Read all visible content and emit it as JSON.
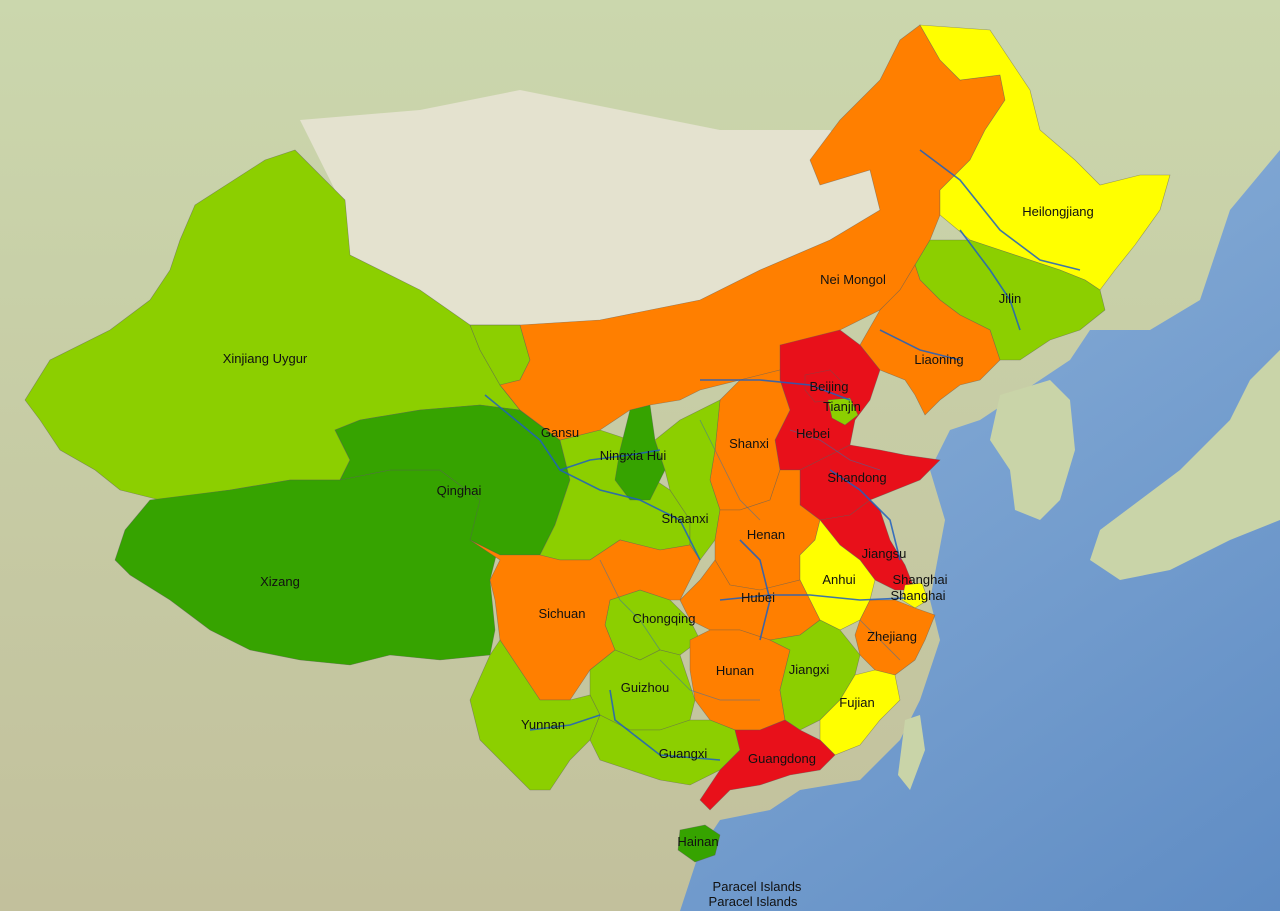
{
  "colors": {
    "ocean": "#8fb6dc",
    "ocean_deep": "#6d97c9",
    "land_north": "#cfd9b0",
    "land_mongolia": "#e6e4d2",
    "land_south": "#c9c6a4",
    "red": "#e8101a",
    "orange": "#ff7f00",
    "yellow": "#ffff00",
    "light_green": "#8ccf00",
    "dark_green": "#36a300",
    "rail": "#1f5fbf"
  },
  "provinces": {
    "xinjiang": {
      "label": "Xinjiang Uygur",
      "category": "light_green"
    },
    "xizang": {
      "label": "Xizang",
      "category": "dark_green"
    },
    "qinghai": {
      "label": "Qinghai",
      "category": "dark_green"
    },
    "gansu": {
      "label": "Gansu",
      "category": "light_green"
    },
    "neimongol": {
      "label": "Nei Mongol",
      "category": "orange"
    },
    "heilongjiang": {
      "label": "Heilongjiang",
      "category": "yellow"
    },
    "jilin": {
      "label": "Jilin",
      "category": "light_green"
    },
    "liaoning": {
      "label": "Liaoning",
      "category": "orange"
    },
    "beijing": {
      "label": "Beijing",
      "category": "red"
    },
    "tianjin": {
      "label": "Tianjin",
      "category": "light_green"
    },
    "hebei": {
      "label": "Hebei",
      "category": "red"
    },
    "shanxi": {
      "label": "Shanxi",
      "category": "orange"
    },
    "ningxia": {
      "label": "Ningxia Hui",
      "category": "dark_green"
    },
    "shaanxi": {
      "label": "Shaanxi",
      "category": "light_green"
    },
    "shandong": {
      "label": "Shandong",
      "category": "red"
    },
    "henan": {
      "label": "Henan",
      "category": "orange"
    },
    "jiangsu": {
      "label": "Jiangsu",
      "category": "red"
    },
    "anhui": {
      "label": "Anhui",
      "category": "yellow"
    },
    "shanghai": {
      "label": "Shanghai",
      "label2": "Shanghai",
      "category": "yellow"
    },
    "hubei": {
      "label": "Hubei",
      "category": "orange"
    },
    "sichuan": {
      "label": "Sichuan",
      "category": "orange"
    },
    "chongqing": {
      "label": "Chongqing",
      "category": "light_green"
    },
    "zhejiang": {
      "label": "Zhejiang",
      "category": "orange"
    },
    "hunan": {
      "label": "Hunan",
      "category": "orange"
    },
    "jiangxi": {
      "label": "Jiangxi",
      "category": "light_green"
    },
    "guizhou": {
      "label": "Guizhou",
      "category": "light_green"
    },
    "fujian": {
      "label": "Fujian",
      "category": "yellow"
    },
    "yunnan": {
      "label": "Yunnan",
      "category": "light_green"
    },
    "guangxi": {
      "label": "Guangxi",
      "category": "light_green"
    },
    "guangdong": {
      "label": "Guangdong",
      "category": "red"
    },
    "hainan": {
      "label": "Hainan",
      "category": "dark_green"
    }
  },
  "islands": {
    "paracel_label_1": "Paracel Islands",
    "paracel_label_2": "Paracel Islands"
  }
}
